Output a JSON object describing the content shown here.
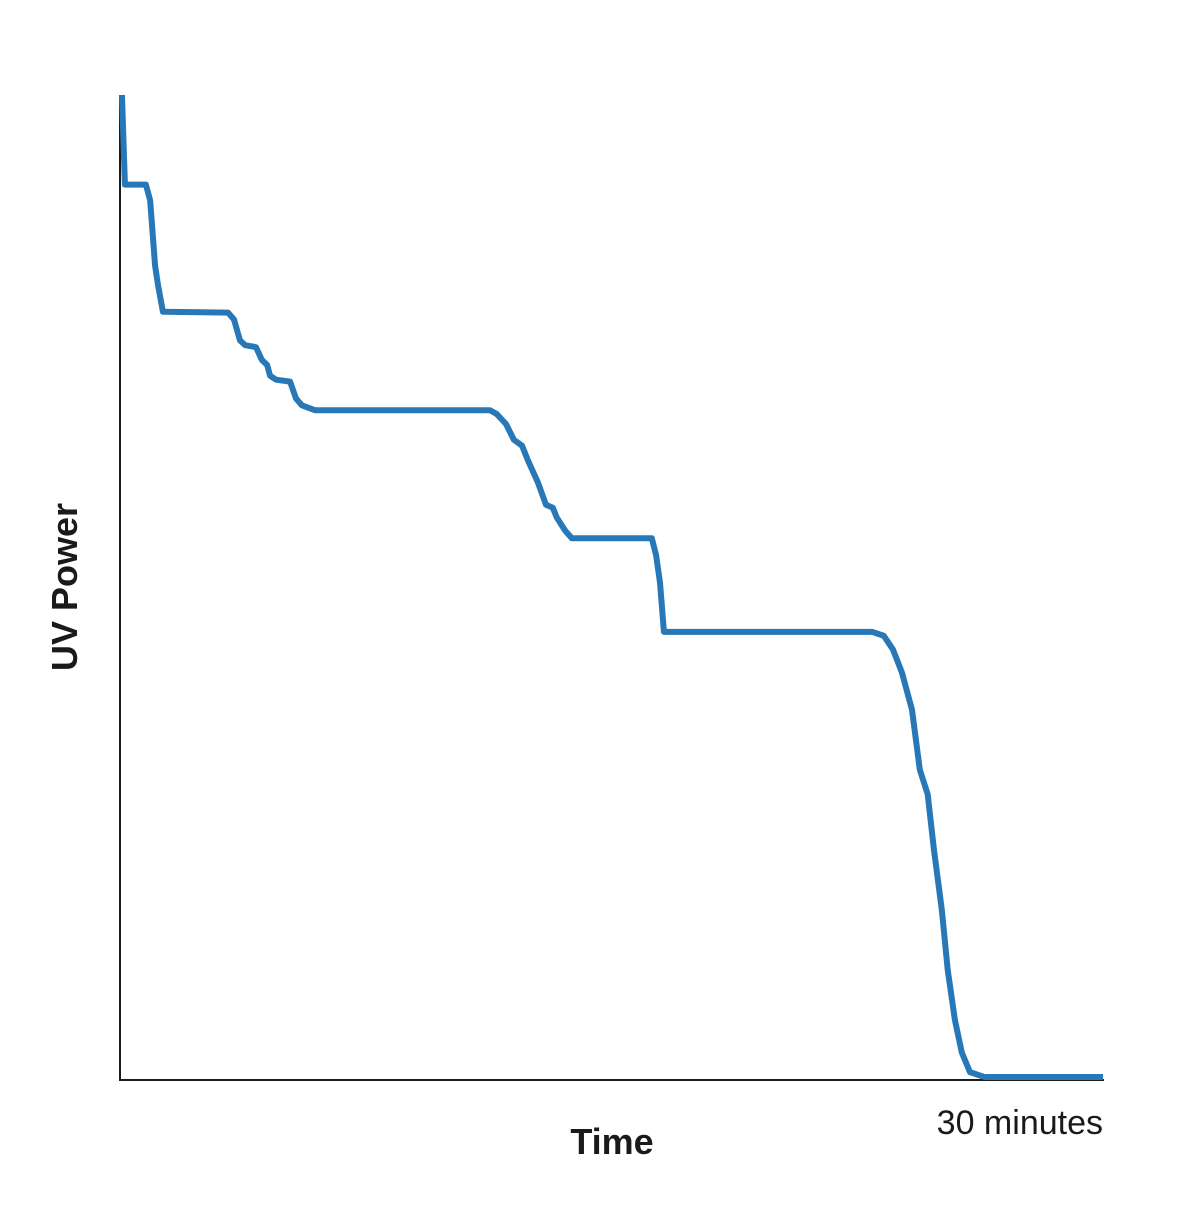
{
  "chart_data": {
    "type": "line",
    "x_label": "Time",
    "y_label": "UV Power",
    "xlim": [
      0,
      30
    ],
    "ylim": [
      0,
      100
    ],
    "xticks": [
      {
        "value": 30,
        "label": "30 minutes"
      }
    ],
    "x": [
      0.06,
      0.15,
      0.79,
      0.92,
      1.07,
      1.16,
      1.31,
      3.3,
      3.48,
      3.66,
      3.82,
      4.15,
      4.33,
      4.49,
      4.58,
      4.76,
      5.19,
      5.37,
      5.55,
      5.95,
      11.29,
      11.5,
      11.78,
      12.02,
      12.27,
      12.45,
      12.75,
      13.0,
      13.21,
      13.33,
      13.58,
      13.79,
      16.23,
      16.36,
      16.48,
      16.6,
      22.95,
      23.31,
      23.59,
      23.86,
      24.17,
      24.41,
      24.65,
      24.84,
      25.08,
      25.26,
      25.48,
      25.69,
      25.94,
      26.39,
      30
    ],
    "series": [
      {
        "name": "UV Power",
        "color": "#2878b8",
        "values": [
          100,
          90.9,
          90.9,
          89.3,
          82.7,
          80.7,
          78.0,
          77.9,
          77.2,
          75.1,
          74.6,
          74.4,
          73.1,
          72.6,
          71.5,
          71.1,
          70.9,
          69.2,
          68.5,
          68.0,
          68.0,
          67.6,
          66.6,
          65.0,
          64.4,
          62.9,
          60.7,
          58.4,
          58.1,
          57.1,
          55.8,
          55.0,
          55.0,
          53.3,
          50.5,
          45.5,
          45.5,
          45.1,
          43.7,
          41.4,
          37.6,
          31.5,
          29.0,
          23.4,
          17.3,
          11.2,
          6.1,
          2.8,
          0.8,
          0.3,
          0.3
        ]
      }
    ]
  }
}
